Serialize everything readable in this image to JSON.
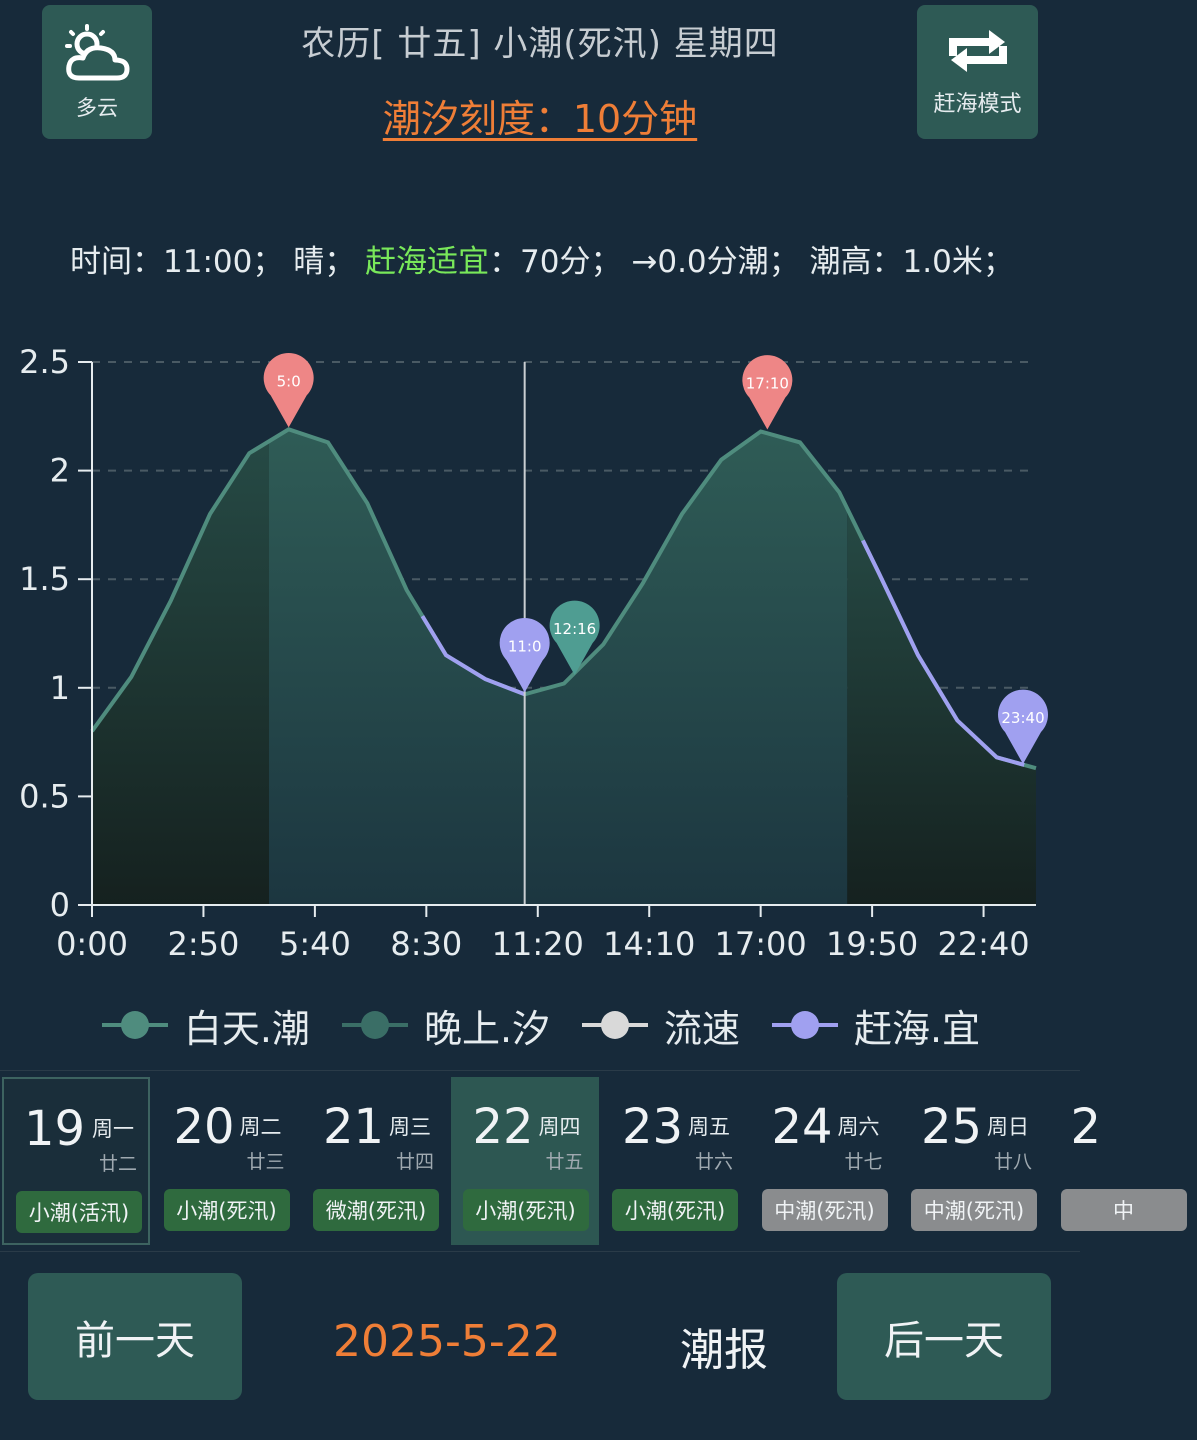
{
  "header": {
    "weather_label": "多云",
    "weather_icon": "partly-cloudy-icon",
    "mode_label": "赶海模式",
    "mode_icon": "repeat-icon",
    "lunar_line": "农历[ 廿五] 小潮(死汛) 星期四",
    "scale_link": "潮汐刻度：10分钟"
  },
  "info": {
    "time": "时间：11:00；",
    "weather": "晴；",
    "suitability_label": "赶海适宜",
    "score": "：70分；",
    "flow": "→0.0分潮；",
    "height": "潮高：1.0米；"
  },
  "chart_data": {
    "type": "line",
    "ylim": [
      0,
      2.5
    ],
    "y_ticks": [
      "0",
      "0.5",
      "1",
      "1.5",
      "2",
      "2.5"
    ],
    "x_ticks": [
      "0:00",
      "2:50",
      "5:40",
      "8:30",
      "11:20",
      "14:10",
      "17:00",
      "19:50",
      "22:40"
    ],
    "x_tick_hours": [
      0,
      2.8333,
      5.6667,
      8.5,
      11.3333,
      14.1667,
      17,
      19.8333,
      22.6667
    ],
    "x_range_hours": [
      0,
      24
    ],
    "grid": "horizontal dashed",
    "series": [
      {
        "name": "白天.潮",
        "color": "#4f8c7e",
        "points": [
          [
            0,
            0.8
          ],
          [
            1,
            1.05
          ],
          [
            2,
            1.4
          ],
          [
            3,
            1.8
          ],
          [
            4,
            2.08
          ],
          [
            5,
            2.19
          ],
          [
            6,
            2.13
          ],
          [
            7,
            1.85
          ],
          [
            8,
            1.45
          ],
          [
            9,
            1.15
          ],
          [
            10,
            1.04
          ],
          [
            11,
            0.97
          ],
          [
            12,
            1.02
          ],
          [
            13,
            1.2
          ],
          [
            14,
            1.48
          ],
          [
            15,
            1.8
          ],
          [
            16,
            2.05
          ],
          [
            17,
            2.18
          ],
          [
            18,
            2.13
          ],
          [
            19,
            1.9
          ],
          [
            20,
            1.53
          ],
          [
            21,
            1.15
          ],
          [
            22,
            0.85
          ],
          [
            23,
            0.68
          ],
          [
            24,
            0.63
          ]
        ]
      },
      {
        "name": "晚上.汐",
        "color": "#3a6e66",
        "day_start_hour": 4.5,
        "night_start_hour": 19.2
      },
      {
        "name": "流速",
        "color": "#d9d9d9"
      },
      {
        "name": "赶海.宜",
        "color": "#a0a0f0",
        "ranges": [
          [
            8.4,
            11
          ],
          [
            19.6,
            23.7
          ]
        ]
      }
    ],
    "markers": [
      {
        "label": "5:0",
        "hour": 5,
        "value": 2.19,
        "color": "#ee8686"
      },
      {
        "label": "17:10",
        "hour": 17.17,
        "value": 2.18,
        "color": "#ee8686"
      },
      {
        "label": "11:0",
        "hour": 11,
        "value": 0.97,
        "color": "#a0a0f0"
      },
      {
        "label": "12:16",
        "hour": 12.27,
        "value": 1.05,
        "color": "#4f9d92"
      },
      {
        "label": "23:40",
        "hour": 23.67,
        "value": 0.64,
        "color": "#a0a0f0"
      }
    ],
    "cursor_hour": 11
  },
  "legend": [
    {
      "label": "白天.潮",
      "color": "#4f8c7e"
    },
    {
      "label": "晚上.汐",
      "color": "#3a6e66"
    },
    {
      "label": "流速",
      "color": "#d9d9d9"
    },
    {
      "label": "赶海.宜",
      "color": "#a0a0f0"
    }
  ],
  "days": [
    {
      "num": "19",
      "week": "周一",
      "lunar": "廿二",
      "tide": "小潮(活汛)",
      "badge": "green",
      "state": "outline"
    },
    {
      "num": "20",
      "week": "周二",
      "lunar": "廿三",
      "tide": "小潮(死汛)",
      "badge": "green",
      "state": ""
    },
    {
      "num": "21",
      "week": "周三",
      "lunar": "廿四",
      "tide": "微潮(死汛)",
      "badge": "green",
      "state": ""
    },
    {
      "num": "22",
      "week": "周四",
      "lunar": "廿五",
      "tide": "小潮(死汛)",
      "badge": "green",
      "state": "today"
    },
    {
      "num": "23",
      "week": "周五",
      "lunar": "廿六",
      "tide": "小潮(死汛)",
      "badge": "green",
      "state": ""
    },
    {
      "num": "24",
      "week": "周六",
      "lunar": "廿七",
      "tide": "中潮(死汛)",
      "badge": "gray",
      "state": ""
    },
    {
      "num": "25",
      "week": "周日",
      "lunar": "廿八",
      "tide": "中潮(死汛)",
      "badge": "gray",
      "state": ""
    },
    {
      "num": "2",
      "week": "",
      "lunar": "",
      "tide": "中",
      "badge": "gray",
      "state": ""
    }
  ],
  "footer": {
    "prev_label": "前一天",
    "date": "2025-5-22",
    "report_label": "潮报",
    "next_label": "后一天"
  }
}
